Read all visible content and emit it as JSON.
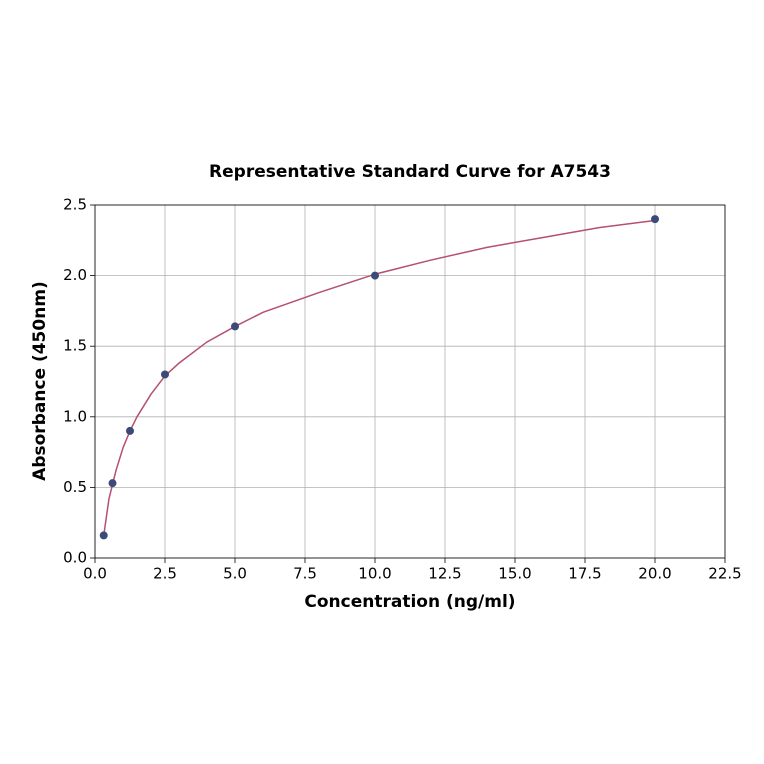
{
  "chart_data": {
    "type": "scatter",
    "title": "Representative Standard Curve for A7543",
    "x_label": "Concentration (ng/ml)",
    "y_label": "Absorbance (450nm)",
    "xlim": [
      0,
      22.5
    ],
    "ylim": [
      0,
      2.5
    ],
    "xticks": [
      {
        "value": 0,
        "label": "0.0"
      },
      2.5,
      {
        "value": 5,
        "label": "5.0"
      },
      7.5,
      {
        "value": 10,
        "label": "10.0"
      },
      12.5,
      {
        "value": 15,
        "label": "15.0"
      },
      17.5,
      {
        "value": 20,
        "label": "20.0"
      },
      22.5
    ],
    "yticks": [
      {
        "value": 0,
        "label": "0.0"
      },
      0.5,
      {
        "value": 1,
        "label": "1.0"
      },
      1.5,
      {
        "value": 2,
        "label": "2.0"
      },
      2.5
    ],
    "grid": true,
    "points": {
      "color": "#3b4a78",
      "x": [
        0.312,
        0.625,
        1.25,
        2.5,
        5,
        10,
        20
      ],
      "values": [
        0.16,
        0.53,
        0.9,
        1.3,
        1.64,
        2.0,
        2.4
      ]
    },
    "curve": {
      "color": "#b5506e",
      "x": [
        0.312,
        0.5,
        0.75,
        1,
        1.25,
        1.5,
        2,
        2.5,
        3,
        4,
        5,
        6,
        8,
        10,
        12,
        14,
        16,
        18,
        20
      ],
      "values": [
        0.16,
        0.42,
        0.62,
        0.78,
        0.9,
        1.0,
        1.16,
        1.29,
        1.38,
        1.53,
        1.64,
        1.74,
        1.88,
        2.01,
        2.11,
        2.2,
        2.27,
        2.34,
        2.39
      ]
    }
  }
}
